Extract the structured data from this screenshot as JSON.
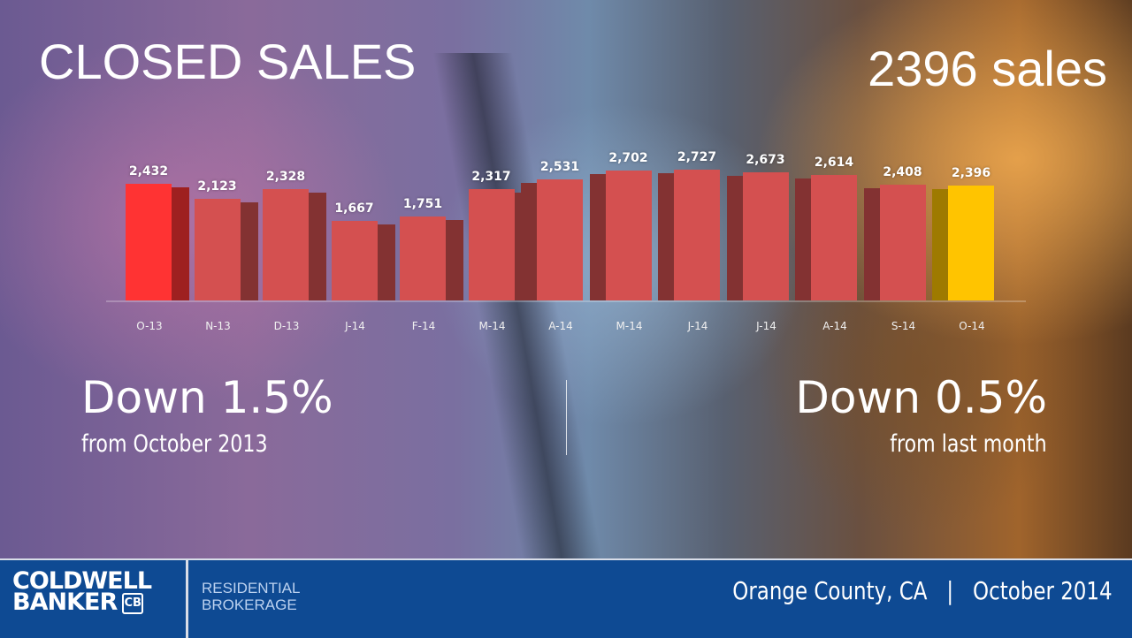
{
  "header": {
    "title": "CLOSED SALES",
    "headline_value": "2396 sales"
  },
  "chart_data": {
    "type": "bar",
    "title": "CLOSED SALES",
    "xlabel": "",
    "ylabel": "",
    "ylim": [
      0,
      3000
    ],
    "grid": false,
    "legend": null,
    "categories": [
      "O-13",
      "N-13",
      "D-13",
      "J-14",
      "F-14",
      "M-14",
      "A-14",
      "M-14",
      "J-14",
      "J-14",
      "A-14",
      "S-14",
      "O-14"
    ],
    "values": [
      2432,
      2123,
      2328,
      1667,
      1751,
      2317,
      2531,
      2702,
      2727,
      2673,
      2614,
      2408,
      2396
    ],
    "value_labels": [
      "2,432",
      "2,123",
      "2,328",
      "1,667",
      "1,751",
      "2,317",
      "2,531",
      "2,702",
      "2,727",
      "2,673",
      "2,614",
      "2,408",
      "2,396"
    ],
    "highlight": {
      "first_bar_color": "#ff3333",
      "last_bar_color": "#ffc400",
      "default_bar_color": "#d45050"
    }
  },
  "stats": {
    "yoy": {
      "headline": "Down 1.5%",
      "caption": "from October 2013"
    },
    "mom": {
      "headline": "Down 0.5%",
      "caption": "from last month"
    }
  },
  "footer": {
    "brand_line1": "COLDWELL",
    "brand_line2": "BANKER",
    "brand_mark": "CB",
    "division_line1": "RESIDENTIAL",
    "division_line2": "BROKERAGE",
    "location_date": "Orange County, CA   |   October 2014"
  },
  "colors": {
    "footer_bg": "#0e4a93",
    "bar_default": "#d45050",
    "bar_first": "#ff3333",
    "bar_last": "#ffc400"
  }
}
